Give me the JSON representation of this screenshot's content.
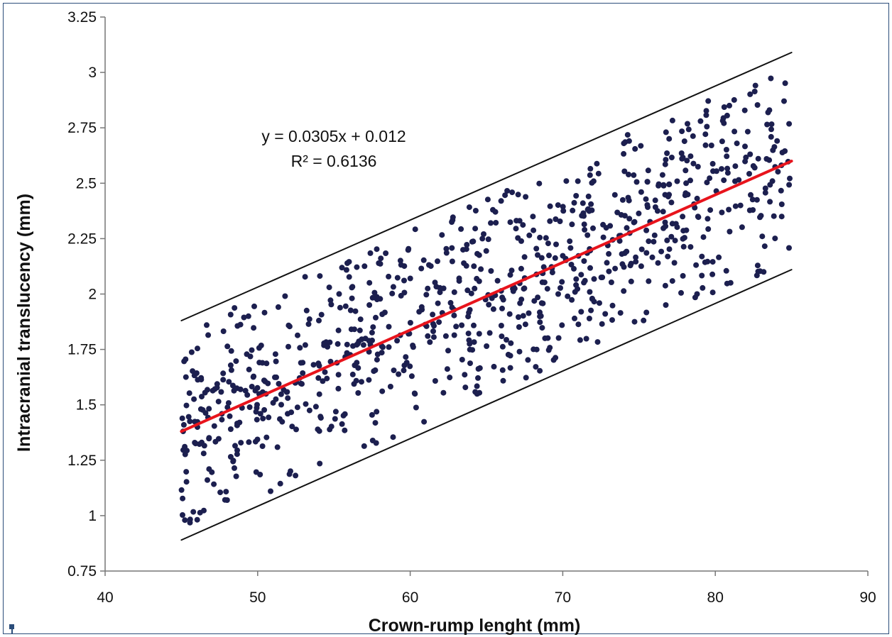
{
  "chart_data": {
    "type": "scatter",
    "xlabel": "Crown-rump  lenght (mm)",
    "ylabel": "Intracranial translucency (mm)",
    "xlim": [
      40,
      90
    ],
    "ylim": [
      0.75,
      3.25
    ],
    "x_ticks": [
      "40",
      "50",
      "60",
      "70",
      "80",
      "90"
    ],
    "y_ticks": [
      "0.75",
      "1",
      "1.25",
      "1.5",
      "1.75",
      "2",
      "2.25",
      "2.5",
      "2.75",
      "3",
      "3.25"
    ],
    "grid": false,
    "legend": "none",
    "annotations": {
      "equation": "y = 0.0305x + 0.012",
      "r_squared": "R² = 0.6136"
    },
    "regression_line": {
      "x": [
        45,
        85
      ],
      "y": [
        1.38,
        2.6
      ],
      "color": "#e8141c"
    },
    "upper_bound": {
      "x": [
        45,
        85
      ],
      "y": [
        1.88,
        3.09
      ],
      "color": "#111111"
    },
    "lower_bound": {
      "x": [
        45,
        85
      ],
      "y": [
        0.89,
        2.11
      ],
      "color": "#111111"
    },
    "point_color": "#1c1f4f",
    "point_count": 900,
    "x_range": [
      45,
      85
    ],
    "residual_sd": 0.25
  },
  "frame": {
    "corner_marker": "square-marker-icon"
  }
}
